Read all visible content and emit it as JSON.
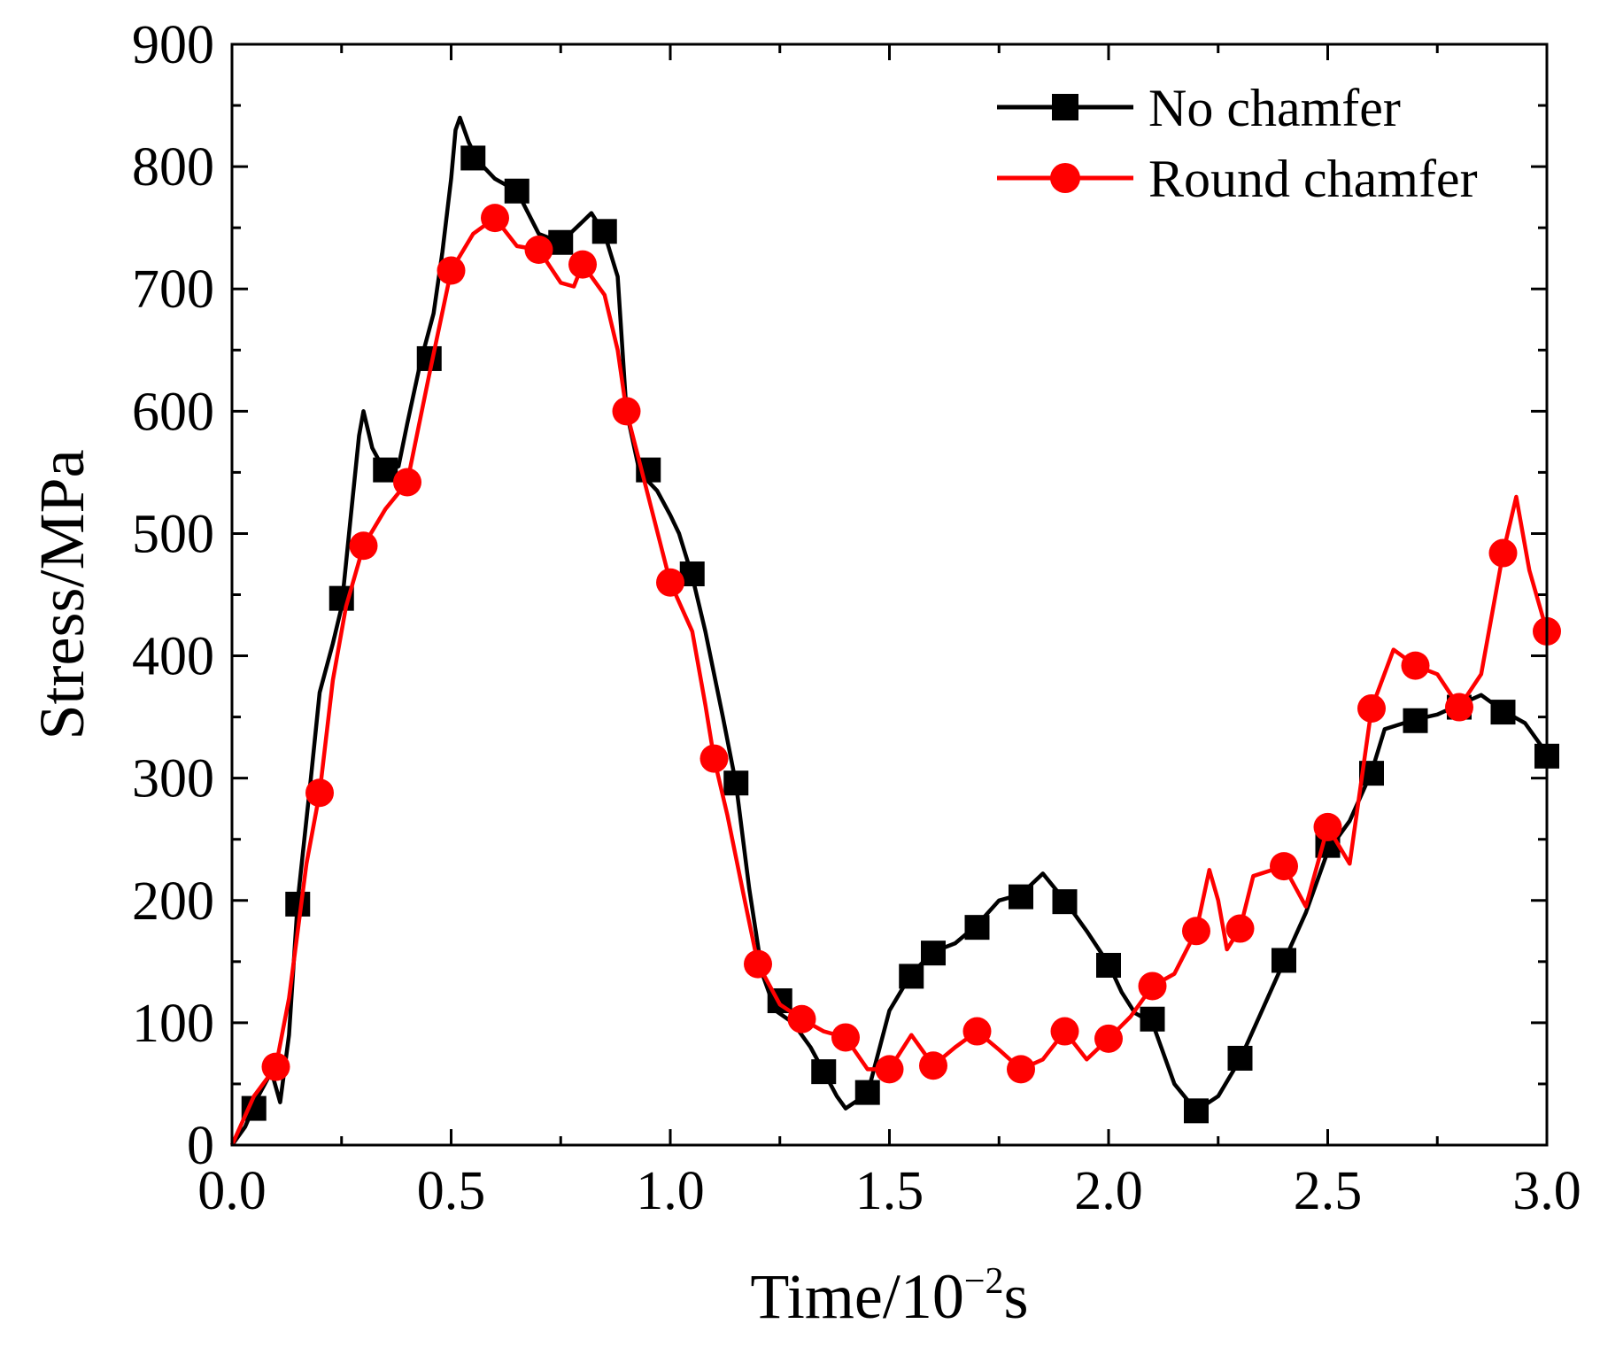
{
  "chart_data": {
    "type": "line",
    "title": "",
    "xlabel": "Time/10",
    "xlabel_exp": "−2",
    "xlabel_unit": "s",
    "ylabel": "Stress/MPa",
    "xlim": [
      0,
      3.0
    ],
    "ylim": [
      0,
      900
    ],
    "xticks": [
      0.0,
      0.5,
      1.0,
      1.5,
      2.0,
      2.5,
      3.0
    ],
    "xtick_labels": [
      "0.0",
      "0.5",
      "1.0",
      "1.5",
      "2.0",
      "2.5",
      "3.0"
    ],
    "yticks": [
      0,
      100,
      200,
      300,
      400,
      500,
      600,
      700,
      800,
      900
    ],
    "ytick_labels": [
      "0",
      "100",
      "200",
      "300",
      "400",
      "500",
      "600",
      "700",
      "800",
      "900"
    ],
    "legend_position": "top-right",
    "grid": false,
    "series": [
      {
        "name": "No chamfer",
        "color": "#000000",
        "marker": "square",
        "line": [
          [
            0,
            0
          ],
          [
            0.03,
            15
          ],
          [
            0.06,
            40
          ],
          [
            0.09,
            60
          ],
          [
            0.11,
            35
          ],
          [
            0.13,
            90
          ],
          [
            0.15,
            200
          ],
          [
            0.18,
            300
          ],
          [
            0.2,
            370
          ],
          [
            0.23,
            410
          ],
          [
            0.25,
            440
          ],
          [
            0.27,
            510
          ],
          [
            0.29,
            580
          ],
          [
            0.3,
            600
          ],
          [
            0.32,
            570
          ],
          [
            0.35,
            550
          ],
          [
            0.38,
            555
          ],
          [
            0.4,
            590
          ],
          [
            0.43,
            640
          ],
          [
            0.46,
            680
          ],
          [
            0.48,
            730
          ],
          [
            0.5,
            790
          ],
          [
            0.51,
            830
          ],
          [
            0.52,
            840
          ],
          [
            0.54,
            820
          ],
          [
            0.56,
            805
          ],
          [
            0.6,
            790
          ],
          [
            0.65,
            780
          ],
          [
            0.7,
            745
          ],
          [
            0.75,
            738
          ],
          [
            0.8,
            755
          ],
          [
            0.82,
            762
          ],
          [
            0.85,
            745
          ],
          [
            0.88,
            710
          ],
          [
            0.9,
            600
          ],
          [
            0.93,
            550
          ],
          [
            0.97,
            535
          ],
          [
            1.0,
            515
          ],
          [
            1.02,
            500
          ],
          [
            1.05,
            465
          ],
          [
            1.08,
            420
          ],
          [
            1.12,
            350
          ],
          [
            1.15,
            295
          ],
          [
            1.18,
            210
          ],
          [
            1.21,
            140
          ],
          [
            1.24,
            110
          ],
          [
            1.28,
            100
          ],
          [
            1.32,
            80
          ],
          [
            1.35,
            60
          ],
          [
            1.38,
            40
          ],
          [
            1.4,
            30
          ],
          [
            1.45,
            42
          ],
          [
            1.5,
            110
          ],
          [
            1.55,
            140
          ],
          [
            1.6,
            158
          ],
          [
            1.65,
            165
          ],
          [
            1.7,
            180
          ],
          [
            1.75,
            200
          ],
          [
            1.8,
            205
          ],
          [
            1.85,
            222
          ],
          [
            1.9,
            200
          ],
          [
            1.95,
            175
          ],
          [
            2.0,
            148
          ],
          [
            2.03,
            125
          ],
          [
            2.06,
            108
          ],
          [
            2.1,
            100
          ],
          [
            2.15,
            50
          ],
          [
            2.2,
            28
          ],
          [
            2.25,
            40
          ],
          [
            2.3,
            70
          ],
          [
            2.35,
            110
          ],
          [
            2.4,
            150
          ],
          [
            2.45,
            190
          ],
          [
            2.5,
            240
          ],
          [
            2.55,
            265
          ],
          [
            2.6,
            305
          ],
          [
            2.63,
            340
          ],
          [
            2.7,
            348
          ],
          [
            2.75,
            352
          ],
          [
            2.8,
            360
          ],
          [
            2.85,
            368
          ],
          [
            2.9,
            355
          ],
          [
            2.95,
            345
          ],
          [
            3.0,
            320
          ]
        ],
        "markers": [
          [
            0.05,
            30
          ],
          [
            0.15,
            197
          ],
          [
            0.25,
            447
          ],
          [
            0.35,
            552
          ],
          [
            0.45,
            643
          ],
          [
            0.55,
            807
          ],
          [
            0.65,
            780
          ],
          [
            0.75,
            738
          ],
          [
            0.85,
            747
          ],
          [
            0.95,
            552
          ],
          [
            1.05,
            467
          ],
          [
            1.15,
            296
          ],
          [
            1.25,
            118
          ],
          [
            1.35,
            60
          ],
          [
            1.45,
            43
          ],
          [
            1.55,
            138
          ],
          [
            1.6,
            157
          ],
          [
            1.7,
            178
          ],
          [
            1.8,
            203
          ],
          [
            1.9,
            199
          ],
          [
            2.0,
            147
          ],
          [
            2.1,
            103
          ],
          [
            2.2,
            28
          ],
          [
            2.3,
            71
          ],
          [
            2.4,
            151
          ],
          [
            2.5,
            245
          ],
          [
            2.6,
            304
          ],
          [
            2.7,
            347
          ],
          [
            2.8,
            358
          ],
          [
            2.9,
            354
          ],
          [
            3.0,
            318
          ]
        ]
      },
      {
        "name": "Round chamfer",
        "color": "#ff0000",
        "marker": "circle",
        "line": [
          [
            0,
            0
          ],
          [
            0.05,
            40
          ],
          [
            0.1,
            64
          ],
          [
            0.13,
            120
          ],
          [
            0.17,
            230
          ],
          [
            0.2,
            288
          ],
          [
            0.23,
            380
          ],
          [
            0.26,
            440
          ],
          [
            0.3,
            490
          ],
          [
            0.35,
            520
          ],
          [
            0.4,
            542
          ],
          [
            0.45,
            630
          ],
          [
            0.5,
            715
          ],
          [
            0.55,
            745
          ],
          [
            0.6,
            758
          ],
          [
            0.65,
            735
          ],
          [
            0.7,
            732
          ],
          [
            0.75,
            705
          ],
          [
            0.78,
            702
          ],
          [
            0.8,
            720
          ],
          [
            0.85,
            695
          ],
          [
            0.88,
            650
          ],
          [
            0.9,
            600
          ],
          [
            0.95,
            530
          ],
          [
            1.0,
            460
          ],
          [
            1.05,
            420
          ],
          [
            1.08,
            360
          ],
          [
            1.1,
            316
          ],
          [
            1.13,
            270
          ],
          [
            1.17,
            200
          ],
          [
            1.2,
            148
          ],
          [
            1.25,
            115
          ],
          [
            1.3,
            103
          ],
          [
            1.35,
            93
          ],
          [
            1.4,
            88
          ],
          [
            1.45,
            62
          ],
          [
            1.5,
            62
          ],
          [
            1.55,
            90
          ],
          [
            1.6,
            65
          ],
          [
            1.65,
            80
          ],
          [
            1.7,
            93
          ],
          [
            1.75,
            78
          ],
          [
            1.8,
            62
          ],
          [
            1.85,
            70
          ],
          [
            1.9,
            93
          ],
          [
            1.95,
            70
          ],
          [
            2.0,
            87
          ],
          [
            2.05,
            105
          ],
          [
            2.1,
            130
          ],
          [
            2.15,
            140
          ],
          [
            2.2,
            175
          ],
          [
            2.23,
            225
          ],
          [
            2.25,
            200
          ],
          [
            2.27,
            160
          ],
          [
            2.3,
            177
          ],
          [
            2.33,
            220
          ],
          [
            2.4,
            228
          ],
          [
            2.45,
            195
          ],
          [
            2.5,
            260
          ],
          [
            2.55,
            230
          ],
          [
            2.6,
            357
          ],
          [
            2.65,
            405
          ],
          [
            2.7,
            392
          ],
          [
            2.75,
            385
          ],
          [
            2.8,
            358
          ],
          [
            2.85,
            385
          ],
          [
            2.9,
            484
          ],
          [
            2.93,
            530
          ],
          [
            2.96,
            470
          ],
          [
            3.0,
            420
          ]
        ],
        "markers": [
          [
            0.1,
            64
          ],
          [
            0.2,
            288
          ],
          [
            0.3,
            490
          ],
          [
            0.4,
            542
          ],
          [
            0.5,
            715
          ],
          [
            0.6,
            758
          ],
          [
            0.7,
            732
          ],
          [
            0.8,
            720
          ],
          [
            0.9,
            600
          ],
          [
            1.0,
            460
          ],
          [
            1.1,
            316
          ],
          [
            1.2,
            148
          ],
          [
            1.3,
            103
          ],
          [
            1.4,
            88
          ],
          [
            1.5,
            62
          ],
          [
            1.6,
            65
          ],
          [
            1.7,
            93
          ],
          [
            1.8,
            62
          ],
          [
            1.9,
            93
          ],
          [
            2.0,
            87
          ],
          [
            2.1,
            130
          ],
          [
            2.2,
            175
          ],
          [
            2.3,
            177
          ],
          [
            2.4,
            228
          ],
          [
            2.5,
            260
          ],
          [
            2.6,
            357
          ],
          [
            2.7,
            392
          ],
          [
            2.8,
            358
          ],
          [
            2.9,
            484
          ],
          [
            3.0,
            420
          ]
        ]
      }
    ]
  }
}
